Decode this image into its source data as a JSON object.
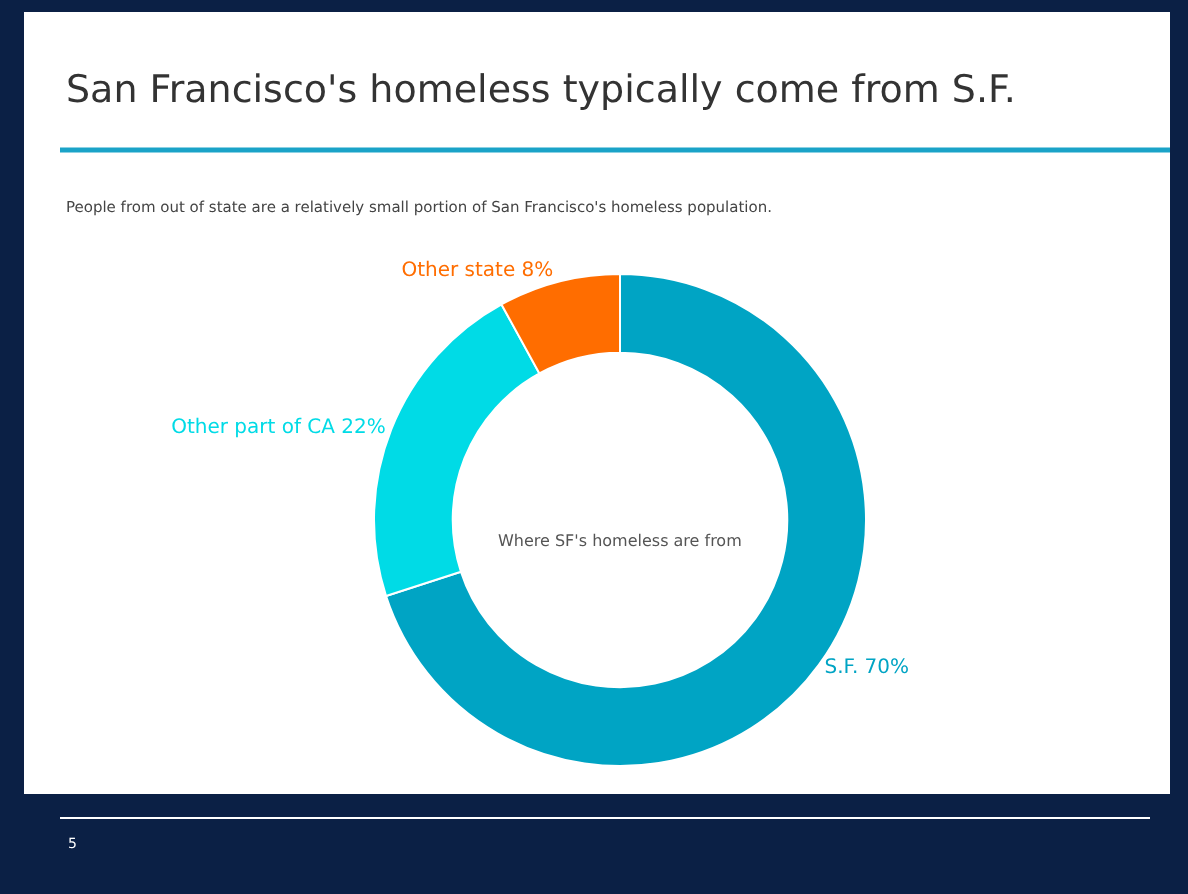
{
  "chart_data": {
    "type": "donut",
    "title": "San Francisco's homeless typically come from S.F.",
    "subtitle": "People from out of state are a relatively small portion of San Francisco's homeless population.",
    "categories": [
      "S.F.",
      "Other part of CA",
      "Other state"
    ],
    "values": [
      70,
      22,
      8
    ],
    "colors": [
      "#00a4c4",
      "#00dbe6",
      "#ff6d00"
    ],
    "value_labels": [
      "70%",
      "22%",
      "8%"
    ],
    "annotations": [
      "Where SF's homeless are from",
      "5"
    ],
    "legend": false
  }
}
